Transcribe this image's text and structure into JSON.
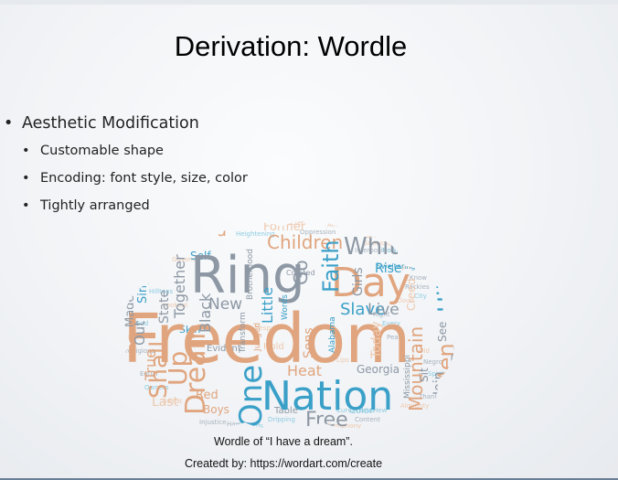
{
  "slide": {
    "title": "Derivation: Wordle",
    "bullets": {
      "main": "Aesthetic Modification",
      "sub": [
        "Customable shape",
        "Encoding: font style, size, color",
        "Tightly arranged"
      ]
    },
    "caption": "Wordle of “I have a dream”.",
    "credit": "Createdt by: https://wordart.com/create"
  },
  "wordcloud": {
    "colors": {
      "orange": "#e0a57e",
      "blue": "#3aa0c8",
      "gray": "#8d98a4",
      "lightblue": "#8ccbe0",
      "lightorange": "#eec9ae"
    },
    "words": [
      "Freedom",
      "Nation",
      "Ring",
      "Day",
      "One",
      "Children",
      "White",
      "Hill",
      "Dream",
      "Faith",
      "Free",
      "Shall",
      "Land",
      "Mountain",
      "Men",
      "Up",
      "New",
      "Little",
      "Black",
      "Slave",
      "Live",
      "Girls",
      "Rise",
      "State",
      "Together",
      "Sing",
      "Made",
      "Out",
      "Skin",
      "Self",
      "Former",
      "Stone",
      "Sweltering",
      "Creed",
      "Hold",
      "See",
      "Join",
      "Sit",
      "Down",
      "True",
      "Last",
      "Red",
      "Boys",
      "Table",
      "Color",
      "Georgia",
      "Heat",
      "Brotherhood",
      "Transform",
      "Judged",
      "Mississippi",
      "Words",
      "Today",
      "Sons",
      "Alabama",
      "Evident",
      "Even",
      "Character",
      "Oppression",
      "Vicious",
      "Vision",
      "Stand",
      "Places",
      "Hands",
      "Lord",
      "Jangling",
      "Sisters",
      "Pray",
      "Let",
      "Go",
      "Meaning",
      "Created",
      "Crooked",
      "Straight",
      "Rough",
      "Plain",
      "Valley",
      "Exalted",
      "Glory",
      "Revealed",
      "Hope",
      "South",
      "Work",
      "Struggle",
      "Jail",
      "Know",
      "City",
      "Old",
      "Negro",
      "Spiritual",
      "Almighty",
      "Thank",
      "God",
      "Last",
      "Equal",
      "Owners",
      "Sweat",
      "Injustice",
      "Discords",
      "Symphony",
      "Content",
      "Hew",
      "Despair",
      "Having",
      "Dripping",
      "Lips",
      "Interposition",
      "Nullification",
      "Governor",
      "Right",
      "Every",
      "Cloud",
      "Peak",
      "Curvaceous",
      "Lookout",
      "Prodigious",
      "Hilltops",
      "Snowcapped",
      "Rockies",
      "Heightening",
      "Alleghenies",
      "Pennsylvania",
      "Ashamed",
      "Hampshire",
      "York"
    ]
  }
}
